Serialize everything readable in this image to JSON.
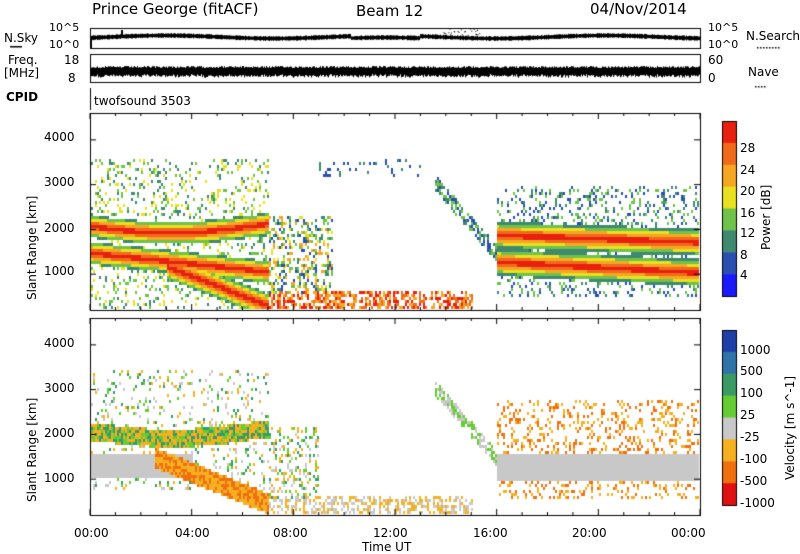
{
  "header": {
    "station": "Prince George (fitACF)",
    "beam": "Beam 12",
    "date": "04/Nov/2014"
  },
  "nsky_panel": {
    "left_label": "N.Sky",
    "right_label": "N.Search",
    "tick_top": "10^5",
    "tick_bottom": "10^0",
    "rtick_top": "10^5",
    "rtick_bottom": "10^0"
  },
  "freq_panel": {
    "left_label_1": "Freq.",
    "left_label_2": "[MHz]",
    "right_label": "Nave",
    "tick_top": "18",
    "tick_bottom": "8",
    "rtick_top": "60",
    "rtick_bottom": "0"
  },
  "cpid_panel": {
    "left_label": "CPID",
    "program": "twofsound 3503"
  },
  "chart_data": [
    {
      "type": "heatmap",
      "name": "power",
      "ylabel": "Slant Range [km]",
      "ylim": [
        200,
        4600
      ],
      "yticks": [
        "1000",
        "2000",
        "3000",
        "4000"
      ],
      "colorbar_label": "Power [dB]",
      "colorbar_ticks": [
        "4",
        "8",
        "12",
        "16",
        "20",
        "24",
        "28"
      ],
      "colors": [
        "#1a1aff",
        "#2a4fb0",
        "#3f8a6f",
        "#6fc24a",
        "#e8e020",
        "#f5a623",
        "#f06a1a",
        "#e82010"
      ],
      "grid": false
    },
    {
      "type": "heatmap",
      "name": "velocity",
      "ylabel": "Slant Range [km]",
      "ylim": [
        200,
        4600
      ],
      "yticks": [
        "1000",
        "2000",
        "3000",
        "4000"
      ],
      "colorbar_label": "Velocity [m s^-1]",
      "colorbar_ticks": [
        "1000",
        "500",
        "100",
        "25",
        "-25",
        "-100",
        "-500",
        "-1000"
      ],
      "colors": [
        "#1f3fa8",
        "#2f74a8",
        "#3a9a66",
        "#66cc33",
        "#c8c8c8",
        "#f5b020",
        "#f07010",
        "#e01010"
      ],
      "grid": false
    }
  ],
  "x_axis": {
    "label": "Time UT",
    "ticks": [
      "00:00",
      "04:00",
      "08:00",
      "12:00",
      "16:00",
      "20:00",
      "00:00"
    ],
    "range_hours": [
      0,
      24
    ]
  }
}
